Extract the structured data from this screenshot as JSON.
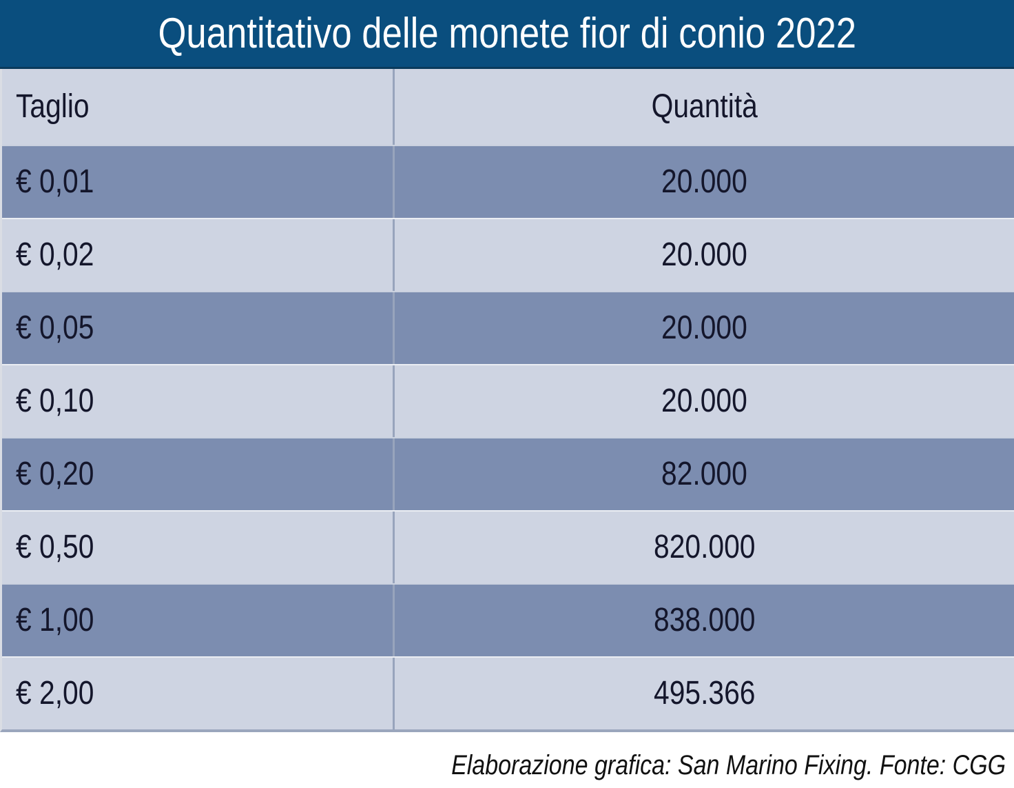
{
  "title": "Quantitativo delle monete fior di conio 2022",
  "table": {
    "header": {
      "taglio": "Taglio",
      "quantita": "Quantità"
    },
    "rows": [
      {
        "taglio": "€ 0,01",
        "quantita": "20.000"
      },
      {
        "taglio": "€ 0,02",
        "quantita": "20.000"
      },
      {
        "taglio": "€ 0,05",
        "quantita": "20.000"
      },
      {
        "taglio": "€ 0,10",
        "quantita": "20.000"
      },
      {
        "taglio": "€ 0,20",
        "quantita": "82.000"
      },
      {
        "taglio": "€ 0,50",
        "quantita": "820.000"
      },
      {
        "taglio": "€ 1,00",
        "quantita": "838.000"
      },
      {
        "taglio": "€ 2,00",
        "quantita": "495.366"
      }
    ]
  },
  "footer": {
    "credit": "Elaborazione grafica: San Marino Fixing. Fonte: CGG"
  },
  "chart_data": {
    "type": "table",
    "title": "Quantitativo delle monete fior di conio 2022",
    "columns": [
      "Taglio",
      "Quantità"
    ],
    "categories": [
      "€ 0,01",
      "€ 0,02",
      "€ 0,05",
      "€ 0,10",
      "€ 0,20",
      "€ 0,50",
      "€ 1,00",
      "€ 2,00"
    ],
    "values": [
      20000,
      20000,
      20000,
      20000,
      82000,
      820000,
      838000,
      495366
    ],
    "value_labels": [
      "20.000",
      "20.000",
      "20.000",
      "20.000",
      "82.000",
      "820.000",
      "838.000",
      "495.366"
    ],
    "source_note": "Elaborazione grafica: San Marino Fixing. Fonte: CGG"
  },
  "colors": {
    "title_bg": "#0A4E7E",
    "title_border": "#0A3A5C",
    "header_bg": "#CED4E2",
    "row_dark": "#7C8DB0",
    "row_light": "#CED4E2",
    "divider": "#98A4BC",
    "bottom_border": "#9AA6BD",
    "left_strip": "#DADDE4",
    "text": "#14162B",
    "footer_text": "#111111"
  }
}
